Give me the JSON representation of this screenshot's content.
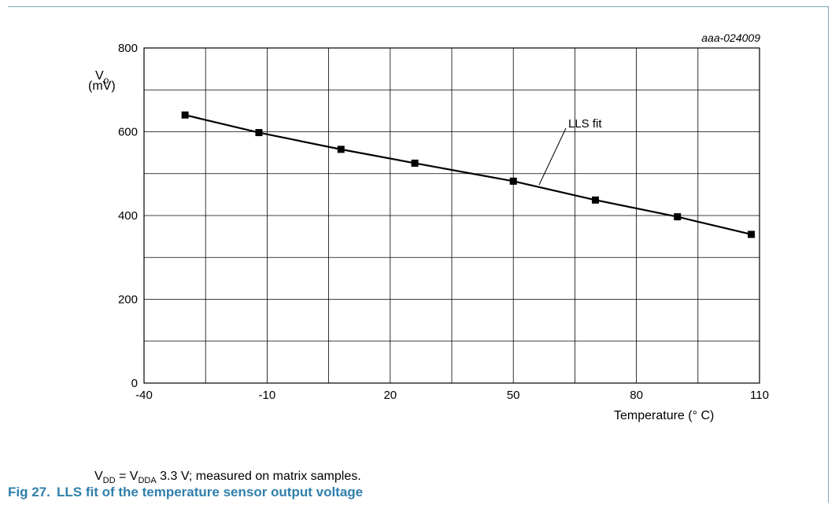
{
  "chart_data": {
    "type": "line",
    "code": "aaa-024009",
    "ylabel": {
      "main": "V",
      "sub": "o",
      "unit": "(mV)"
    },
    "xlabel": "Temperature (° C)",
    "xlim": [
      -40,
      110
    ],
    "ylim": [
      0,
      800
    ],
    "x_ticks": [
      -40,
      -10,
      20,
      50,
      80,
      110
    ],
    "y_ticks": [
      0,
      200,
      400,
      600,
      800
    ],
    "grid": true,
    "annotation": "LLS fit",
    "series": [
      {
        "marker": "square",
        "x": [
          -30,
          -10,
          10,
          30,
          50,
          70,
          90,
          110
        ],
        "y": [
          640,
          598,
          558,
          525,
          482,
          437,
          397,
          355
        ]
      }
    ]
  },
  "note": {
    "p1": "V",
    "s1": "DD",
    "p2": " = V",
    "s2": "DDA",
    "p3": " 3.3 V; measured on matrix samples."
  },
  "caption": {
    "number": "Fig 27.",
    "title": "LLS fit of the temperature sensor output voltage"
  }
}
